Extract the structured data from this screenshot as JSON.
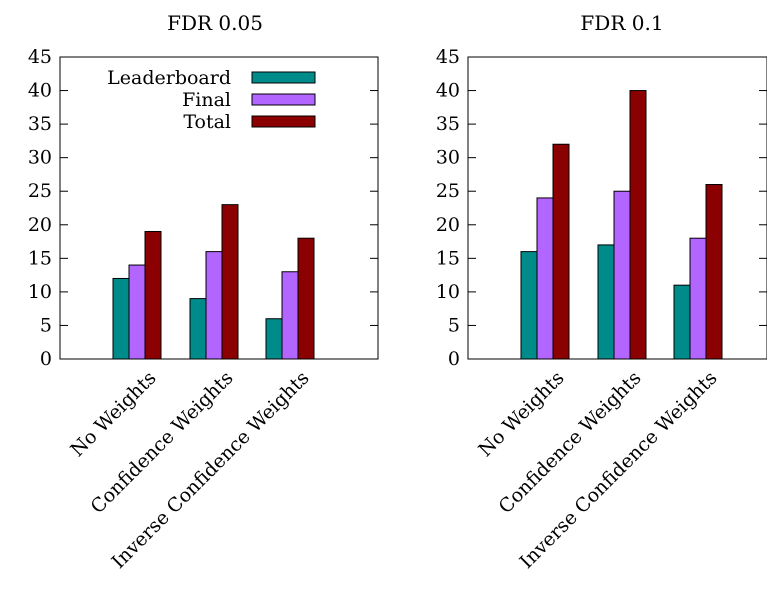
{
  "chart_data": [
    {
      "type": "bar",
      "title": "FDR 0.05",
      "categories": [
        "No Weights",
        "Confidence Weights",
        "Inverse Confidence Weights"
      ],
      "series": [
        {
          "name": "Leaderboard",
          "values": [
            12,
            9,
            6
          ],
          "color": "#008b8b"
        },
        {
          "name": "Final",
          "values": [
            14,
            16,
            13
          ],
          "color": "#b266ff"
        },
        {
          "name": "Total",
          "values": [
            19,
            23,
            18
          ],
          "color": "#8b0000"
        }
      ],
      "ylim": [
        0,
        45
      ],
      "yticks": [
        0,
        5,
        10,
        15,
        20,
        25,
        30,
        35,
        40,
        45
      ],
      "grid": false,
      "legend": "top-left"
    },
    {
      "type": "bar",
      "title": "FDR 0.1",
      "categories": [
        "No Weights",
        "Confidence Weights",
        "Inverse Confidence Weights"
      ],
      "series": [
        {
          "name": "Leaderboard",
          "values": [
            16,
            17,
            11
          ],
          "color": "#008b8b"
        },
        {
          "name": "Final",
          "values": [
            24,
            25,
            18
          ],
          "color": "#b266ff"
        },
        {
          "name": "Total",
          "values": [
            32,
            40,
            26
          ],
          "color": "#8b0000"
        }
      ],
      "ylim": [
        0,
        45
      ],
      "yticks": [
        0,
        5,
        10,
        15,
        20,
        25,
        30,
        35,
        40,
        45
      ],
      "grid": false,
      "legend": "none"
    }
  ]
}
